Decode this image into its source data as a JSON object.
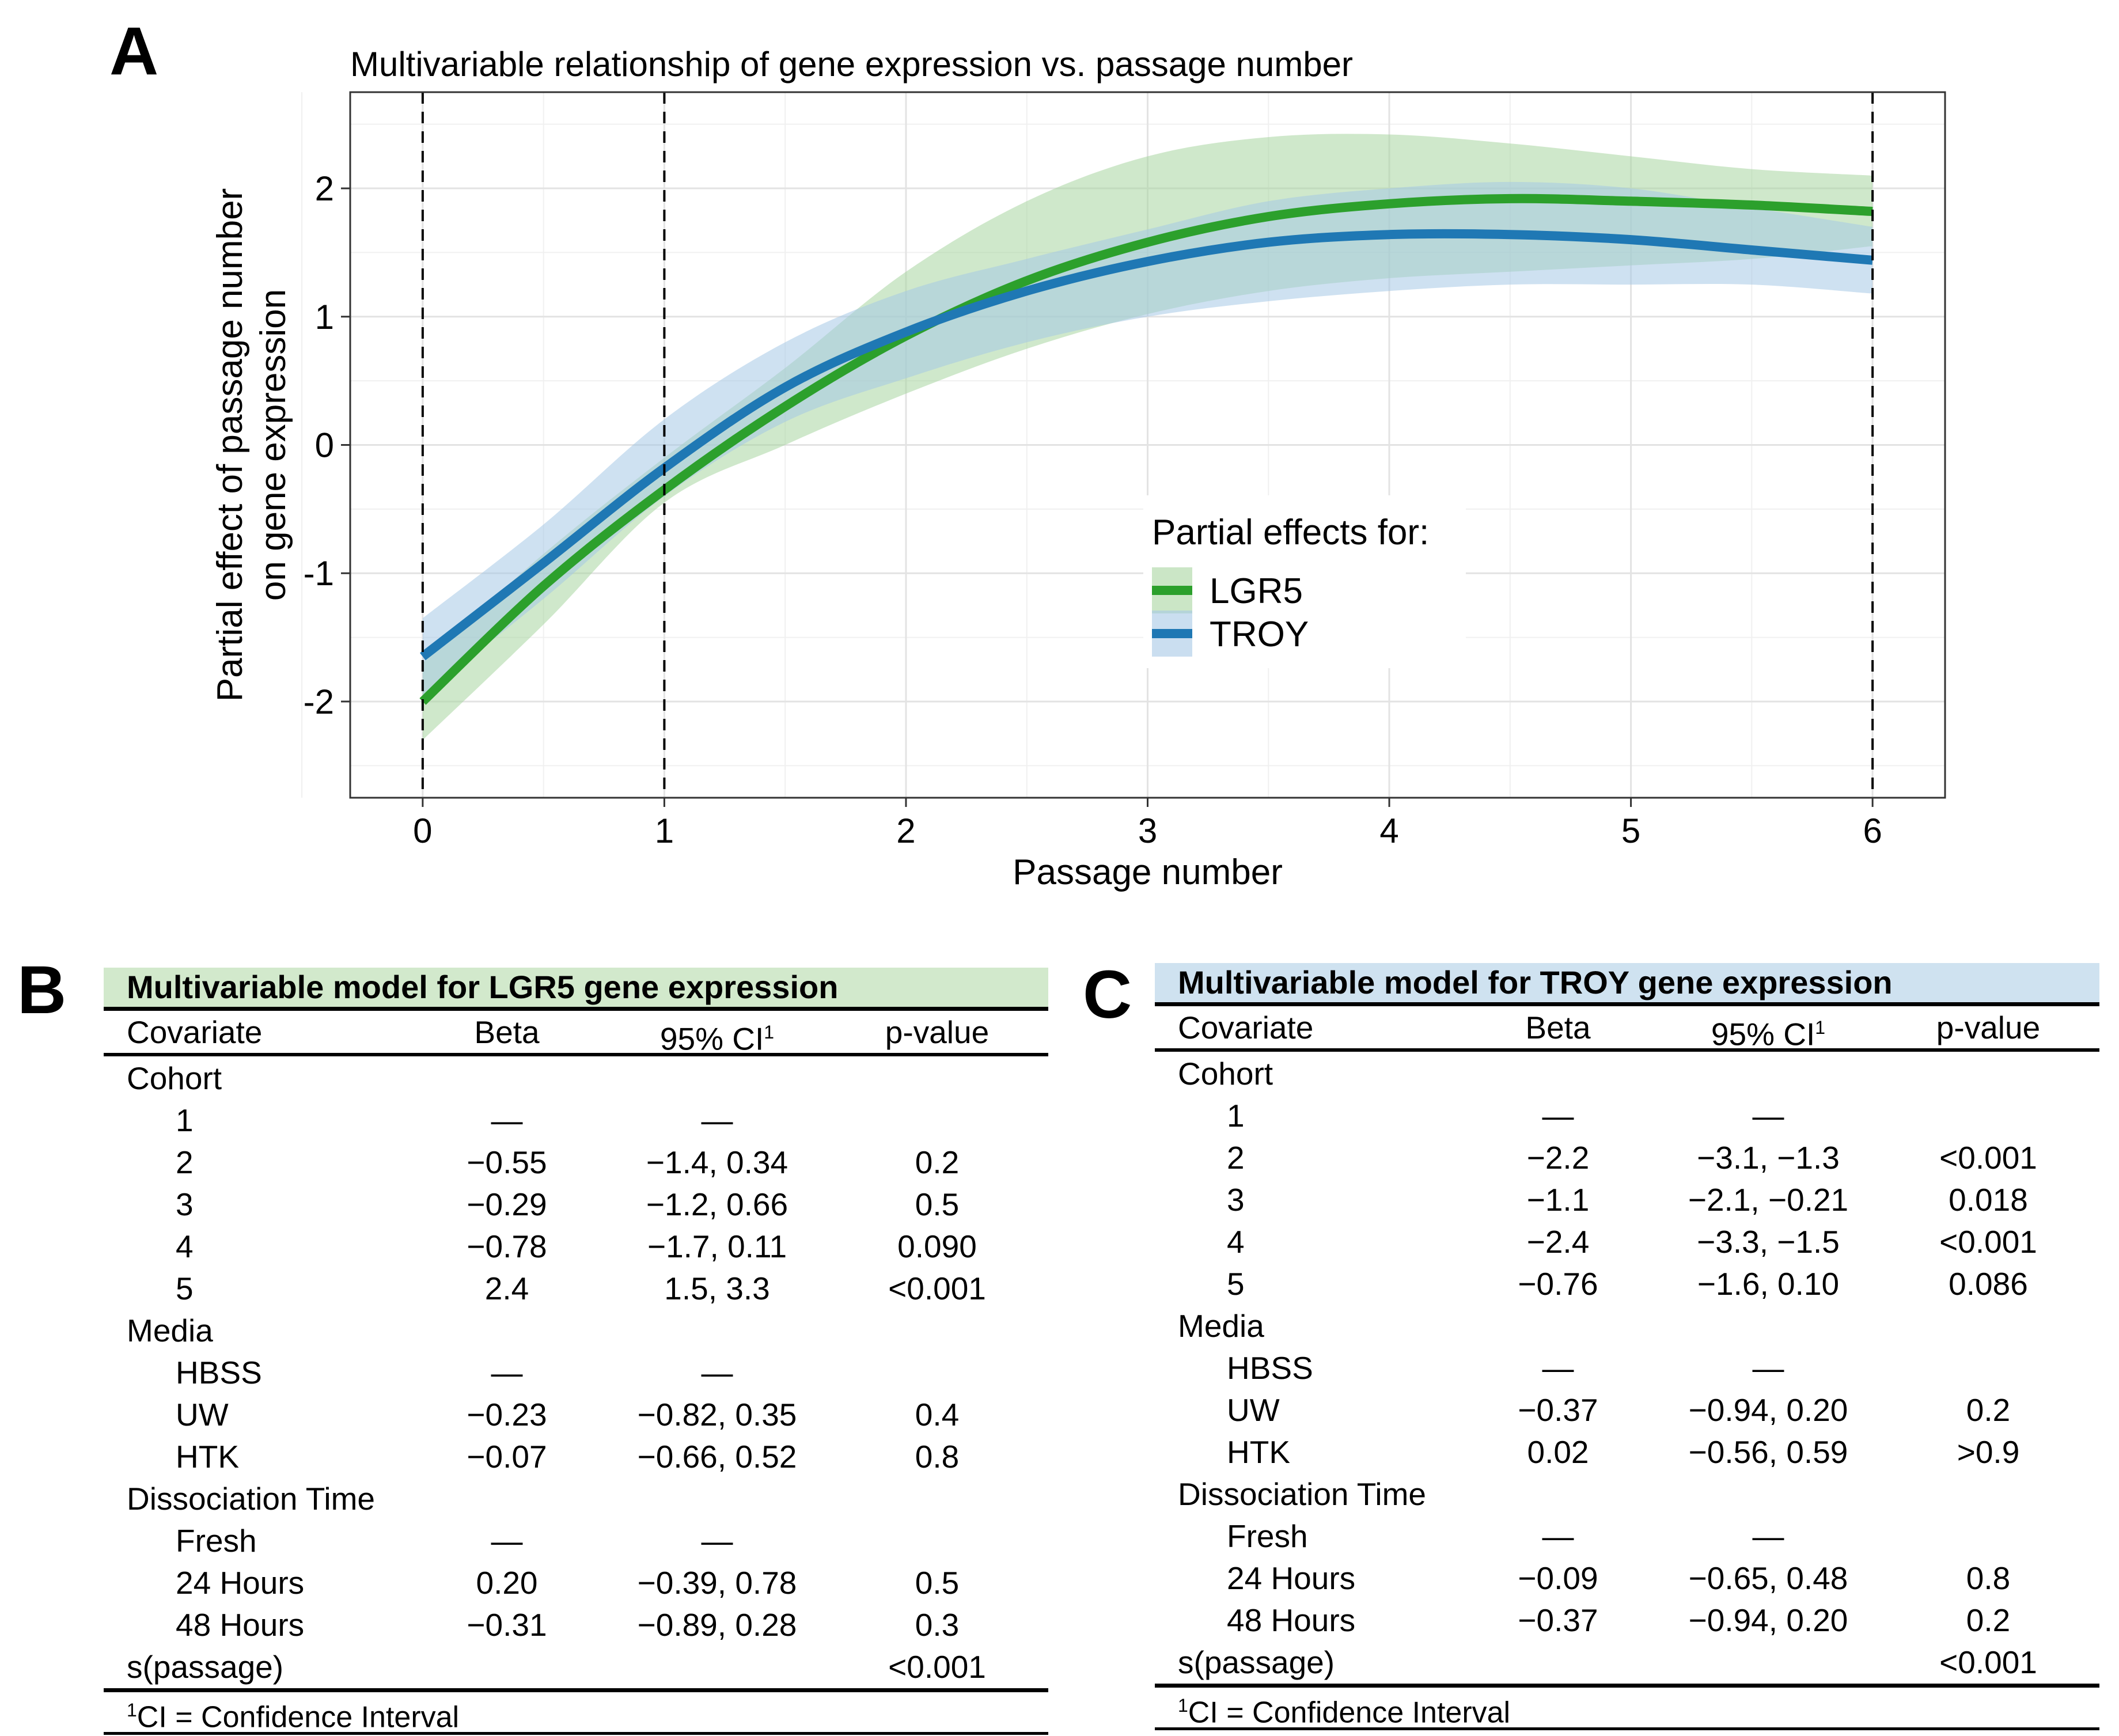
{
  "panel_labels": {
    "a": "A",
    "b": "B",
    "c": "C"
  },
  "chart_data": {
    "type": "line",
    "title": "Multivariable relationship of gene expression vs. passage number",
    "xlabel": "Passage number",
    "ylabel_lines": [
      "Partial effect of passage number",
      "on gene expression"
    ],
    "xlim": [
      -0.3,
      6.3
    ],
    "ylim": [
      -2.75,
      2.75
    ],
    "x_ticks": [
      0,
      1,
      2,
      3,
      4,
      5,
      6
    ],
    "y_ticks": [
      -2,
      -1,
      0,
      1,
      2
    ],
    "y_tick_labels": [
      "-2",
      "-1",
      "0",
      "1",
      "2"
    ],
    "vlines": [
      0,
      1,
      6
    ],
    "grid": true,
    "legend": {
      "title": "Partial effects for:",
      "position": "inside-right"
    },
    "series": [
      {
        "name": "LGR5",
        "color": "#2ca02c",
        "band_color": "#a8d5a0",
        "x": [
          0,
          0.5,
          1,
          1.5,
          2,
          2.5,
          3,
          3.5,
          4,
          4.5,
          5,
          5.5,
          6
        ],
        "y": [
          -2.0,
          -1.1,
          -0.35,
          0.3,
          0.85,
          1.28,
          1.58,
          1.78,
          1.88,
          1.92,
          1.9,
          1.87,
          1.82
        ],
        "lower": [
          -2.3,
          -1.4,
          -0.45,
          0.0,
          0.4,
          0.75,
          1.02,
          1.2,
          1.3,
          1.35,
          1.4,
          1.45,
          1.55
        ],
        "upper": [
          -1.7,
          -0.85,
          -0.1,
          0.6,
          1.35,
          1.9,
          2.25,
          2.4,
          2.42,
          2.35,
          2.25,
          2.15,
          2.1
        ]
      },
      {
        "name": "TROY",
        "color": "#1f78b4",
        "band_color": "#a6c8e6",
        "x": [
          0,
          0.5,
          1,
          1.5,
          2,
          2.5,
          3,
          3.5,
          4,
          4.5,
          5,
          5.5,
          6
        ],
        "y": [
          -1.65,
          -0.92,
          -0.18,
          0.45,
          0.88,
          1.2,
          1.43,
          1.58,
          1.64,
          1.64,
          1.6,
          1.52,
          1.44
        ],
        "lower": [
          -1.95,
          -1.2,
          -0.4,
          0.18,
          0.52,
          0.8,
          1.0,
          1.12,
          1.2,
          1.25,
          1.25,
          1.25,
          1.18
        ],
        "upper": [
          -1.35,
          -0.62,
          0.2,
          0.8,
          1.2,
          1.45,
          1.68,
          1.9,
          2.0,
          2.05,
          2.0,
          1.85,
          1.7
        ]
      }
    ]
  },
  "tables": [
    {
      "title": "Multivariable model for LGR5 gene expression",
      "title_bg": "#d2e9cc",
      "headers": {
        "covariate": "Covariate",
        "beta": "Beta",
        "ci": "95% CI",
        "ci_sup": "1",
        "p": "p-value"
      },
      "rows": [
        {
          "cov": "Cohort",
          "indent": false,
          "beta": "",
          "ci": "",
          "p": ""
        },
        {
          "cov": "1",
          "indent": true,
          "beta": "—",
          "ci": "—",
          "p": ""
        },
        {
          "cov": "2",
          "indent": true,
          "beta": "−0.55",
          "ci": "−1.4, 0.34",
          "p": "0.2"
        },
        {
          "cov": "3",
          "indent": true,
          "beta": "−0.29",
          "ci": "−1.2, 0.66",
          "p": "0.5"
        },
        {
          "cov": "4",
          "indent": true,
          "beta": "−0.78",
          "ci": "−1.7, 0.11",
          "p": "0.090"
        },
        {
          "cov": "5",
          "indent": true,
          "beta": "2.4",
          "ci": "1.5, 3.3",
          "p": "<0.001"
        },
        {
          "cov": "Media",
          "indent": false,
          "beta": "",
          "ci": "",
          "p": ""
        },
        {
          "cov": "HBSS",
          "indent": true,
          "beta": "—",
          "ci": "—",
          "p": ""
        },
        {
          "cov": "UW",
          "indent": true,
          "beta": "−0.23",
          "ci": "−0.82, 0.35",
          "p": "0.4"
        },
        {
          "cov": "HTK",
          "indent": true,
          "beta": "−0.07",
          "ci": "−0.66, 0.52",
          "p": "0.8"
        },
        {
          "cov": "Dissociation Time",
          "indent": false,
          "beta": "",
          "ci": "",
          "p": ""
        },
        {
          "cov": "Fresh",
          "indent": true,
          "beta": "—",
          "ci": "—",
          "p": ""
        },
        {
          "cov": "24 Hours",
          "indent": true,
          "beta": "0.20",
          "ci": "−0.39, 0.78",
          "p": "0.5"
        },
        {
          "cov": "48 Hours",
          "indent": true,
          "beta": "−0.31",
          "ci": "−0.89, 0.28",
          "p": "0.3"
        },
        {
          "cov": "s(passage)",
          "indent": false,
          "beta": "",
          "ci": "",
          "p": "<0.001"
        }
      ],
      "footnote_sup": "1",
      "footnote": "CI = Confidence Interval"
    },
    {
      "title": "Multivariable model for TROY gene expression",
      "title_bg": "#cfe2f0",
      "headers": {
        "covariate": "Covariate",
        "beta": "Beta",
        "ci": "95% CI",
        "ci_sup": "1",
        "p": "p-value"
      },
      "rows": [
        {
          "cov": "Cohort",
          "indent": false,
          "beta": "",
          "ci": "",
          "p": ""
        },
        {
          "cov": "1",
          "indent": true,
          "beta": "—",
          "ci": "—",
          "p": ""
        },
        {
          "cov": "2",
          "indent": true,
          "beta": "−2.2",
          "ci": "−3.1, −1.3",
          "p": "<0.001"
        },
        {
          "cov": "3",
          "indent": true,
          "beta": "−1.1",
          "ci": "−2.1, −0.21",
          "p": "0.018"
        },
        {
          "cov": "4",
          "indent": true,
          "beta": "−2.4",
          "ci": "−3.3, −1.5",
          "p": "<0.001"
        },
        {
          "cov": "5",
          "indent": true,
          "beta": "−0.76",
          "ci": "−1.6, 0.10",
          "p": "0.086"
        },
        {
          "cov": "Media",
          "indent": false,
          "beta": "",
          "ci": "",
          "p": ""
        },
        {
          "cov": "HBSS",
          "indent": true,
          "beta": "—",
          "ci": "—",
          "p": ""
        },
        {
          "cov": "UW",
          "indent": true,
          "beta": "−0.37",
          "ci": "−0.94, 0.20",
          "p": "0.2"
        },
        {
          "cov": "HTK",
          "indent": true,
          "beta": "0.02",
          "ci": "−0.56, 0.59",
          "p": ">0.9"
        },
        {
          "cov": "Dissociation Time",
          "indent": false,
          "beta": "",
          "ci": "",
          "p": ""
        },
        {
          "cov": "Fresh",
          "indent": true,
          "beta": "—",
          "ci": "—",
          "p": ""
        },
        {
          "cov": "24 Hours",
          "indent": true,
          "beta": "−0.09",
          "ci": "−0.65, 0.48",
          "p": "0.8"
        },
        {
          "cov": "48 Hours",
          "indent": true,
          "beta": "−0.37",
          "ci": "−0.94, 0.20",
          "p": "0.2"
        },
        {
          "cov": "s(passage)",
          "indent": false,
          "beta": "",
          "ci": "",
          "p": "<0.001"
        }
      ],
      "footnote_sup": "1",
      "footnote": "CI = Confidence Interval"
    }
  ]
}
